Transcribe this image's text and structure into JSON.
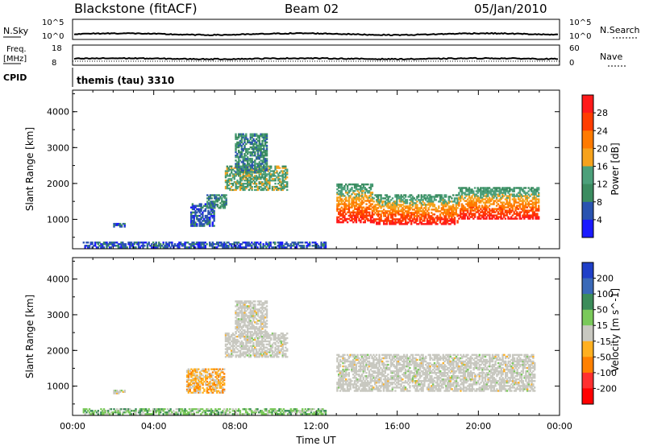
{
  "header": {
    "station": "Blackstone (fitACF)",
    "beam": "Beam 02",
    "date": "05/Jan/2010"
  },
  "strip_labels": {
    "nsky": "N.Sky",
    "nsearch": "N.Search",
    "freq_line1": "Freq.",
    "freq_line2": "[MHz]",
    "nave": "Nave",
    "cpid": "CPID",
    "cpid_text": "themis (tau) 3310",
    "nsky_ticks": [
      "10^5",
      "10^0"
    ],
    "nsearch_ticks": [
      "10^5",
      "10^0"
    ],
    "freq_ticks": [
      "18",
      "8"
    ],
    "nave_ticks": [
      "60",
      "0"
    ]
  },
  "colors": {
    "trace": "#000000",
    "power_scale": [
      "#1a1aff",
      "#2a53b0",
      "#3b8c60",
      "#4ca07a",
      "#f6a21c",
      "#ff7a00",
      "#ff3d00",
      "#ff1a1a"
    ],
    "velocity_scale": [
      "#1f3fc8",
      "#3a69b8",
      "#3c8c5a",
      "#7ac95a",
      "#c8c8c0",
      "#ffb020",
      "#ff8000",
      "#ff3030",
      "#ff0000"
    ]
  },
  "chart_data": [
    {
      "type": "heatmap",
      "name": "power",
      "xlabel": "",
      "ylabel": "Slant Range [km]",
      "ylim": [
        180,
        4600
      ],
      "yticks": [
        "1000",
        "2000",
        "3000",
        "4000"
      ],
      "xlim": [
        0,
        24
      ],
      "colorbar_label": "Power [dB]",
      "colorbar_ticks": [
        "4",
        "8",
        "12",
        "16",
        "20",
        "24",
        "28"
      ],
      "regions": [
        {
          "t0": 2.0,
          "t1": 2.6,
          "r0": 780,
          "r1": 900,
          "level": 1
        },
        {
          "t0": 5.8,
          "t1": 7.0,
          "r0": 800,
          "r1": 1450,
          "level": 1
        },
        {
          "t0": 6.6,
          "t1": 7.6,
          "r0": 1300,
          "r1": 1700,
          "level": 2
        },
        {
          "t0": 7.5,
          "t1": 10.6,
          "r0": 1800,
          "r1": 2500,
          "level": 3
        },
        {
          "t0": 8.0,
          "t1": 9.6,
          "r0": 2300,
          "r1": 3400,
          "level": 2
        },
        {
          "t0": 13.0,
          "t1": 14.8,
          "r0": 900,
          "r1": 2000,
          "level": 5
        },
        {
          "t0": 14.8,
          "t1": 19.0,
          "r0": 850,
          "r1": 1700,
          "level": 6
        },
        {
          "t0": 19.0,
          "t1": 23.0,
          "r0": 1000,
          "r1": 1900,
          "level": 5
        },
        {
          "t0": 0.5,
          "t1": 12.5,
          "r0": 200,
          "r1": 380,
          "level": 1
        }
      ]
    },
    {
      "type": "heatmap",
      "name": "velocity",
      "xlabel": "Time UT",
      "ylabel": "Slant Range [km]",
      "ylim": [
        180,
        4600
      ],
      "yticks": [
        "1000",
        "2000",
        "3000",
        "4000"
      ],
      "xlim": [
        0,
        24
      ],
      "xticks": [
        "00:00",
        "04:00",
        "08:00",
        "12:00",
        "16:00",
        "20:00",
        "00:00"
      ],
      "colorbar_label": "Velocity [m s^-1]",
      "colorbar_ticks": [
        "200",
        "100",
        "50",
        "15",
        "-15",
        "-50",
        "-100",
        "-200"
      ],
      "regions": [
        {
          "t0": 2.0,
          "t1": 2.6,
          "r0": 780,
          "r1": 900,
          "level": 4
        },
        {
          "t0": 5.6,
          "t1": 7.5,
          "r0": 800,
          "r1": 1500,
          "level": 5
        },
        {
          "t0": 7.5,
          "t1": 10.6,
          "r0": 1800,
          "r1": 2500,
          "level": 4
        },
        {
          "t0": 8.0,
          "t1": 9.6,
          "r0": 2500,
          "r1": 3400,
          "level": 4
        },
        {
          "t0": 13.0,
          "t1": 22.8,
          "r0": 850,
          "r1": 1900,
          "level": 4
        },
        {
          "t0": 0.5,
          "t1": 12.5,
          "r0": 200,
          "r1": 380,
          "level": 3
        }
      ]
    }
  ]
}
